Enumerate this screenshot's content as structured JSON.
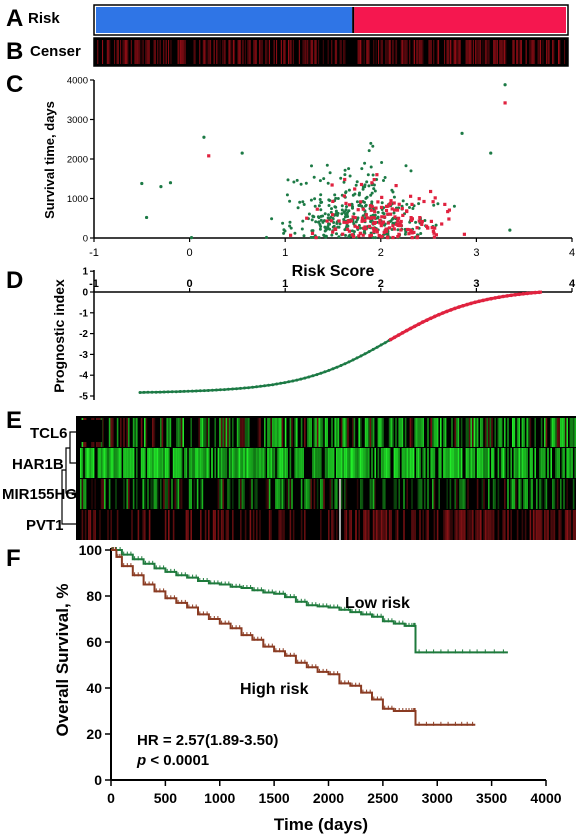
{
  "colors": {
    "low_blue": "#2f75e6",
    "high_red": "#f5174f",
    "low_green": "#1c7a45",
    "high_red_mark": "#e0223f",
    "km_green": "#1e7a3c",
    "km_brown": "#8a3b22",
    "heat_green": "#22ee2a",
    "heat_red": "#a3161a"
  },
  "panels": {
    "a": {
      "letter": "A",
      "label": "Risk"
    },
    "b": {
      "letter": "B",
      "label": "Censer"
    },
    "c": {
      "letter": "C"
    },
    "d": {
      "letter": "D"
    },
    "e": {
      "letter": "E"
    },
    "f": {
      "letter": "F"
    }
  },
  "chart_data": [
    {
      "panel": "A",
      "type": "heatmap",
      "row_label": "Risk",
      "segments": [
        {
          "group": "low risk",
          "color": "#2f75e6",
          "fraction": 0.545
        },
        {
          "group": "high risk",
          "color": "#f5174f",
          "fraction": 0.455
        }
      ]
    },
    {
      "panel": "B",
      "type": "heatmap",
      "row_label": "Censer",
      "description_colors": [
        "#000000",
        "#b0101a"
      ]
    },
    {
      "panel": "C",
      "type": "scatter",
      "xlabel": "Risk Score",
      "ylabel": "Survival time, days",
      "xlim": [
        -1,
        4
      ],
      "ylim": [
        0,
        4000
      ],
      "xticks": [
        "-1",
        "0",
        "1",
        "2",
        "3",
        "4"
      ],
      "yticks": [
        "0",
        "1000",
        "2000",
        "3000",
        "4000"
      ],
      "series": [
        {
          "color": "#1c7a45",
          "marker": "circle"
        },
        {
          "color": "#e0223f",
          "marker": "square"
        }
      ]
    },
    {
      "panel": "D",
      "type": "line",
      "ylabel": "Prognostic index",
      "xlim": [
        -1,
        4
      ],
      "ylim": [
        -5,
        1
      ],
      "xticks": [
        "-1",
        "0",
        "1",
        "2",
        "3",
        "4"
      ],
      "yticks": [
        "1",
        "0",
        "-1",
        "-2",
        "-3",
        "-4",
        "-5"
      ],
      "low_start": -4.85,
      "split_value": -2.3,
      "high_end": 0.15
    },
    {
      "panel": "E",
      "type": "heatmap",
      "rows": [
        "TCL6",
        "HAR1B",
        "MIR155HG",
        "PVT1"
      ]
    },
    {
      "panel": "F",
      "type": "line",
      "xlabel": "Time (days)",
      "ylabel": "Overall Survival, %",
      "xlim": [
        0,
        4000
      ],
      "ylim": [
        0,
        100
      ],
      "xticks": [
        "0",
        "500",
        "1000",
        "1500",
        "2000",
        "2500",
        "3000",
        "3500",
        "4000"
      ],
      "yticks": [
        "0",
        "20",
        "40",
        "60",
        "80",
        "100"
      ],
      "series": [
        {
          "name": "Low risk",
          "color": "#1e7a3c",
          "points": [
            [
              0,
              100
            ],
            [
              100,
              98
            ],
            [
              200,
              96
            ],
            [
              300,
              94
            ],
            [
              400,
              92
            ],
            [
              500,
              90.5
            ],
            [
              600,
              89
            ],
            [
              700,
              88
            ],
            [
              800,
              86.5
            ],
            [
              900,
              85.5
            ],
            [
              1000,
              85
            ],
            [
              1100,
              84
            ],
            [
              1200,
              83.5
            ],
            [
              1300,
              82.5
            ],
            [
              1400,
              81.5
            ],
            [
              1500,
              81
            ],
            [
              1600,
              79.5
            ],
            [
              1700,
              77.5
            ],
            [
              1800,
              76
            ],
            [
              1900,
              75.5
            ],
            [
              2000,
              75
            ],
            [
              2100,
              74
            ],
            [
              2200,
              73
            ],
            [
              2300,
              72
            ],
            [
              2400,
              71
            ],
            [
              2500,
              69
            ],
            [
              2600,
              68
            ],
            [
              2700,
              67
            ],
            [
              2780,
              67
            ],
            [
              2800,
              55.5
            ],
            [
              3000,
              55.5
            ],
            [
              3200,
              55.5
            ],
            [
              3400,
              55.5
            ],
            [
              3650,
              55.5
            ]
          ]
        },
        {
          "name": "High risk",
          "color": "#8a3b22",
          "points": [
            [
              0,
              100
            ],
            [
              50,
              97
            ],
            [
              100,
              93
            ],
            [
              200,
              89
            ],
            [
              300,
              85
            ],
            [
              400,
              82
            ],
            [
              500,
              79
            ],
            [
              600,
              77
            ],
            [
              700,
              75
            ],
            [
              800,
              72
            ],
            [
              900,
              70
            ],
            [
              1000,
              68
            ],
            [
              1100,
              66
            ],
            [
              1200,
              63
            ],
            [
              1300,
              61
            ],
            [
              1400,
              58
            ],
            [
              1500,
              56
            ],
            [
              1600,
              54
            ],
            [
              1700,
              51
            ],
            [
              1800,
              49
            ],
            [
              1900,
              47
            ],
            [
              2000,
              46
            ],
            [
              2100,
              42
            ],
            [
              2200,
              41
            ],
            [
              2300,
              38
            ],
            [
              2400,
              35
            ],
            [
              2500,
              31
            ],
            [
              2600,
              30
            ],
            [
              2700,
              30
            ],
            [
              2780,
              30
            ],
            [
              2800,
              24
            ],
            [
              3000,
              24
            ],
            [
              3200,
              24
            ],
            [
              3350,
              24
            ]
          ]
        }
      ],
      "annotations": {
        "hr": "HR = 2.57(1.89-3.50)",
        "p_italic": "p",
        "p_rest": " < 0.0001"
      }
    }
  ]
}
